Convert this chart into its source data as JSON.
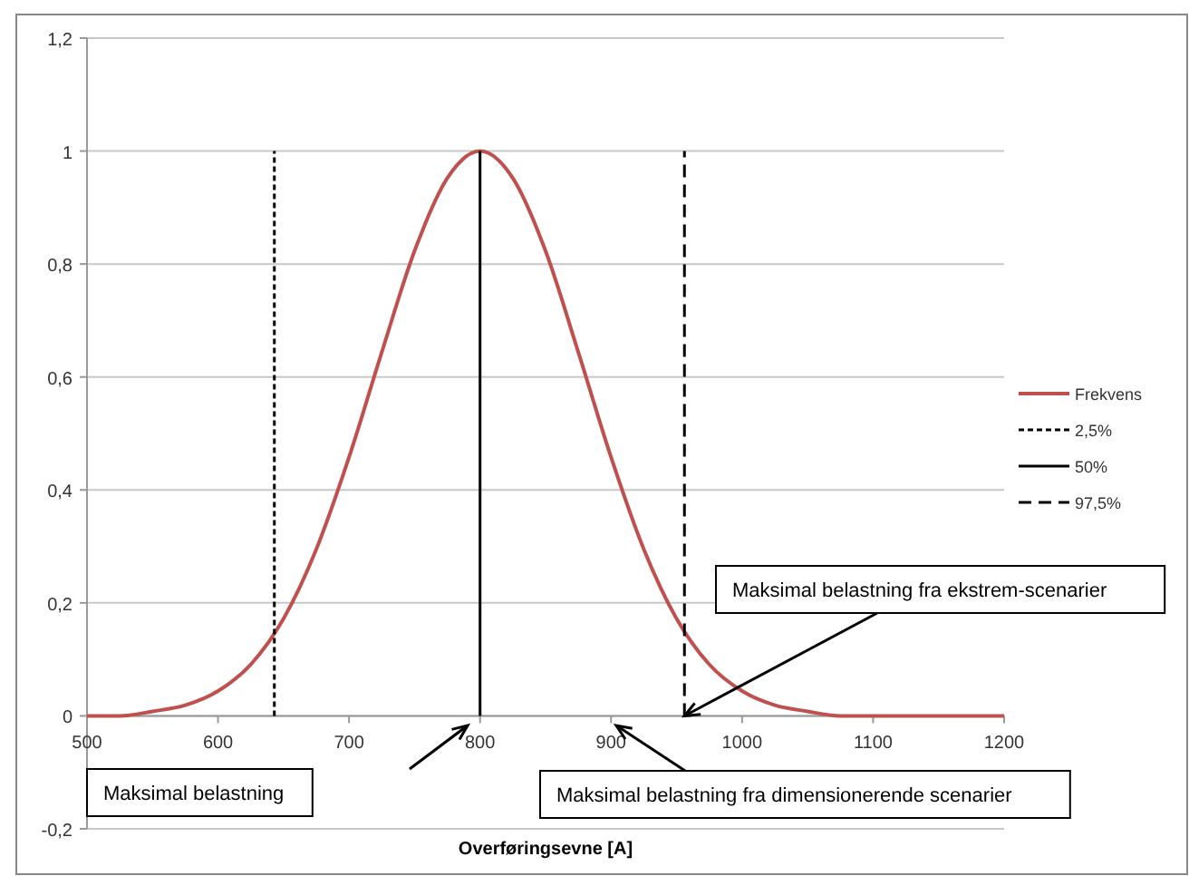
{
  "chart_data": {
    "type": "line",
    "xlabel": "Overføringsevne [A]",
    "xlim": [
      500,
      1200
    ],
    "xticks": [
      500,
      600,
      700,
      800,
      900,
      1000,
      1100,
      1200
    ],
    "ylim": [
      -0.2,
      1.2
    ],
    "yticks": [
      {
        "value": -0.2,
        "label": "-0,2"
      },
      0,
      {
        "value": 0.2,
        "label": "0,2"
      },
      {
        "value": 0.4,
        "label": "0,4"
      },
      {
        "value": 0.6,
        "label": "0,6"
      },
      {
        "value": 0.8,
        "label": "0,8"
      },
      1,
      {
        "value": 1.2,
        "label": "1,2"
      }
    ],
    "grid": "y",
    "legend": "right",
    "series": [
      {
        "name": "Frekvens",
        "color": "#c0504d",
        "line_style": "solid",
        "x": [
          500,
          525,
          550,
          575,
          600,
          625,
          650,
          675,
          700,
          725,
          750,
          775,
          800,
          825,
          850,
          875,
          900,
          925,
          950,
          975,
          1000,
          1025,
          1050,
          1075,
          1100,
          1125,
          1150,
          1175,
          1200
        ],
        "values": [
          0,
          0,
          0.008,
          0.019,
          0.044,
          0.091,
          0.172,
          0.295,
          0.458,
          0.644,
          0.823,
          0.952,
          1,
          0.952,
          0.823,
          0.644,
          0.458,
          0.295,
          0.172,
          0.091,
          0.044,
          0.019,
          0.008,
          0,
          0,
          0,
          0,
          0,
          0
        ]
      },
      {
        "name": "2,5%",
        "color": "#000000",
        "line_style": "dotted",
        "x": [
          643,
          643
        ],
        "values": [
          0,
          1
        ]
      },
      {
        "name": "50%",
        "color": "#000000",
        "line_style": "solid",
        "x": [
          800,
          800
        ],
        "values": [
          0,
          1
        ]
      },
      {
        "name": "97,5%",
        "color": "#000000",
        "line_style": "dashed",
        "x": [
          956,
          956
        ],
        "values": [
          0,
          1
        ]
      }
    ],
    "annotations": [
      "Maksimal belastning",
      "Maksimal belastning fra dimensionerende scenarier",
      {
        "text": "Maksimal belastning fra ekstrem-scenarier",
        "x": 956,
        "y": 0
      }
    ]
  }
}
